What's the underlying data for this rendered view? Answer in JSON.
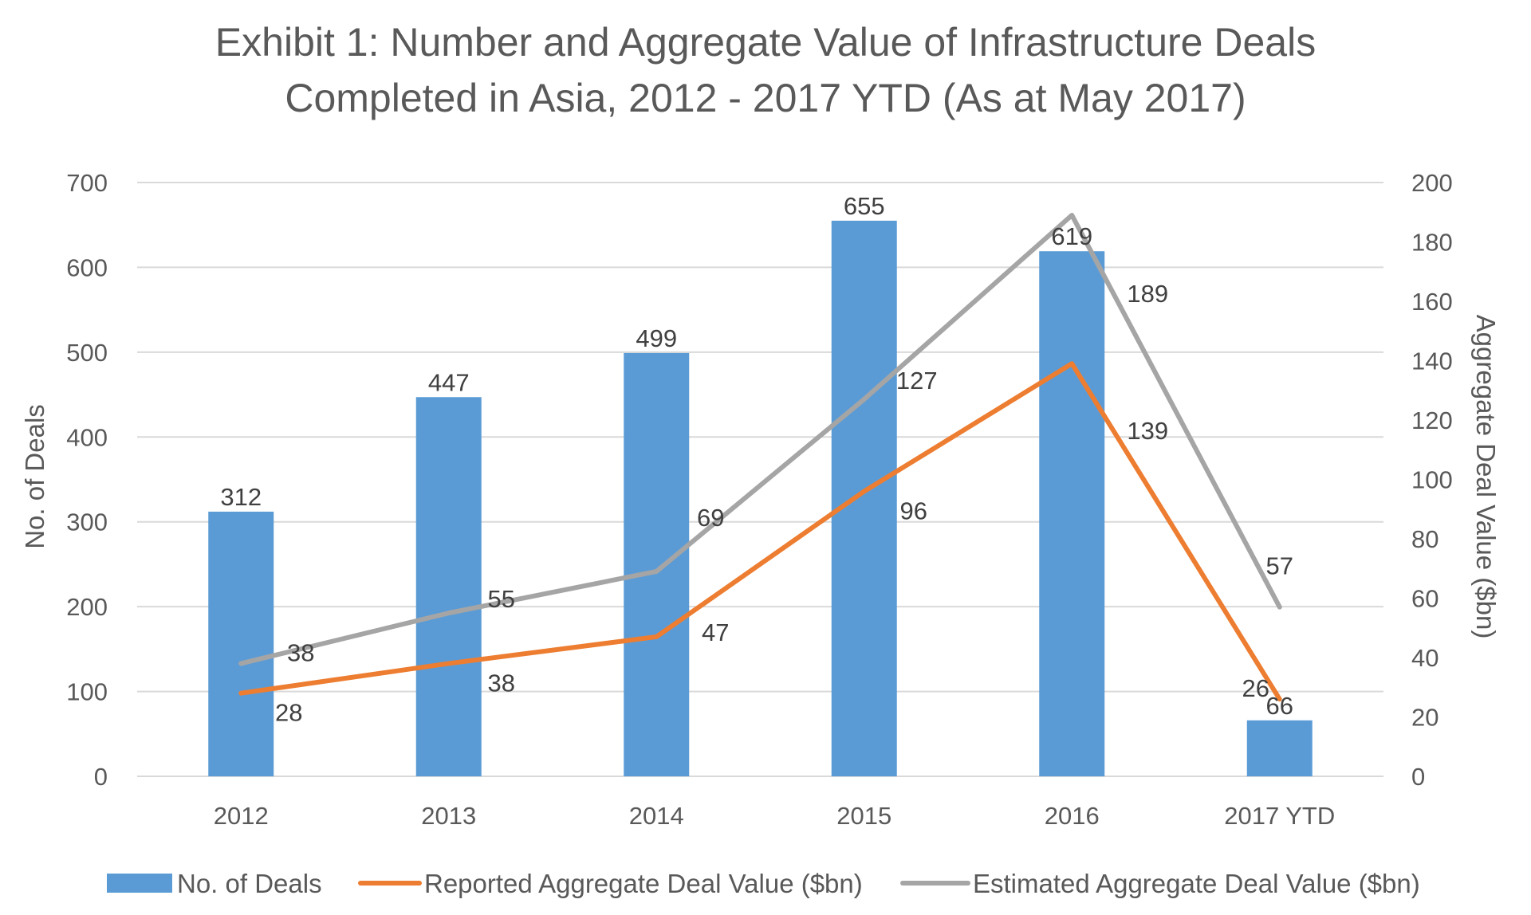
{
  "chart_data": {
    "type": "bar",
    "title": "Exhibit 1: Number and Aggregate Value of Infrastructure Deals Completed in Asia, 2012 - 2017 YTD (As at May 2017)",
    "title_lines": [
      "Exhibit 1: Number and Aggregate Value of Infrastructure Deals",
      "Completed in Asia, 2012 - 2017 YTD (As at May 2017)"
    ],
    "categories": [
      "2012",
      "2013",
      "2014",
      "2015",
      "2016",
      "2017 YTD"
    ],
    "ylabel": "No. of Deals",
    "y2label": "Aggregate Deal Value ($bn)",
    "ylim": [
      0,
      700
    ],
    "y2lim": [
      0,
      200
    ],
    "yticks": [
      "0",
      "100",
      "200",
      "300",
      "400",
      "500",
      "600",
      "700"
    ],
    "y2ticks": [
      "0",
      "20",
      "40",
      "60",
      "80",
      "100",
      "120",
      "140",
      "160",
      "180",
      "200"
    ],
    "grid": true,
    "legend_position": "bottom",
    "series": [
      {
        "name": "No. of Deals",
        "type": "bar",
        "axis": "left",
        "color": "#5B9BD5",
        "values": [
          312,
          447,
          499,
          655,
          619,
          66
        ],
        "labels": [
          "312",
          "447",
          "499",
          "655",
          "619",
          "66"
        ]
      },
      {
        "name": "Reported Aggregate Deal Value ($bn)",
        "type": "line",
        "axis": "right",
        "color": "#ED7D31",
        "values": [
          28,
          38,
          47,
          96,
          139,
          26
        ],
        "labels": [
          "28",
          "38",
          "47",
          "96",
          "139",
          "26"
        ]
      },
      {
        "name": "Estimated Aggregate Deal Value ($bn)",
        "type": "line",
        "axis": "right",
        "color": "#A5A5A5",
        "values": [
          38,
          55,
          69,
          127,
          189,
          57
        ],
        "labels": [
          "38",
          "55",
          "69",
          "127",
          "189",
          "57"
        ]
      }
    ]
  }
}
